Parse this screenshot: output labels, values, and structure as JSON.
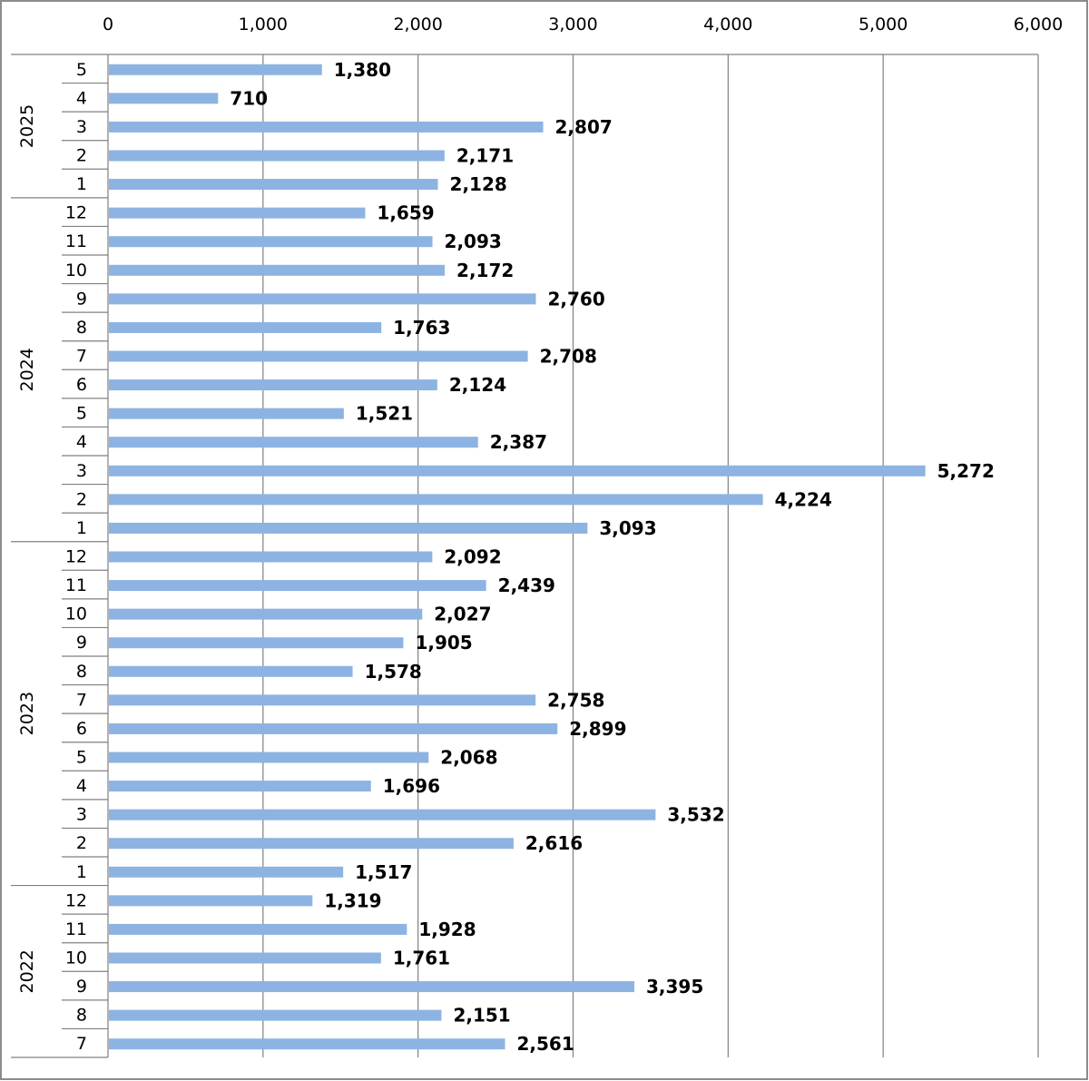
{
  "chart_data": {
    "type": "bar",
    "orientation": "horizontal",
    "xlim": [
      0,
      6000
    ],
    "x_ticks": [
      "0",
      "1,000",
      "2,000",
      "3,000",
      "4,000",
      "5,000",
      "6,000"
    ],
    "x_tick_values": [
      0,
      1000,
      2000,
      3000,
      4000,
      5000,
      6000
    ],
    "x_axis_position": "top",
    "grid": true,
    "bar_color": "#8db3e2",
    "gridline_color": "#808080",
    "groups": [
      {
        "label": "2025",
        "categories": [
          "5",
          "4",
          "3",
          "2",
          "1"
        ]
      },
      {
        "label": "2024",
        "categories": [
          "12",
          "11",
          "10",
          "9",
          "8",
          "7",
          "6",
          "5",
          "4",
          "3",
          "2",
          "1"
        ]
      },
      {
        "label": "2023",
        "categories": [
          "12",
          "11",
          "10",
          "9",
          "8",
          "7",
          "6",
          "5",
          "4",
          "3",
          "2",
          "1"
        ]
      },
      {
        "label": "2022",
        "categories": [
          "12",
          "11",
          "10",
          "9",
          "8",
          "7"
        ]
      }
    ],
    "values": [
      1380,
      710,
      2807,
      2171,
      2128,
      1659,
      2093,
      2172,
      2760,
      1763,
      2708,
      2124,
      1521,
      2387,
      5272,
      4224,
      3093,
      2092,
      2439,
      2027,
      1905,
      1578,
      2758,
      2899,
      2068,
      1696,
      3532,
      2616,
      1517,
      1319,
      1928,
      1761,
      3395,
      2151,
      2561
    ],
    "value_labels": [
      "1,380",
      "710",
      "2,807",
      "2,171",
      "2,128",
      "1,659",
      "2,093",
      "2,172",
      "2,760",
      "1,763",
      "2,708",
      "2,124",
      "1,521",
      "2,387",
      "5,272",
      "4,224",
      "3,093",
      "2,092",
      "2,439",
      "2,027",
      "1,905",
      "1,578",
      "2,758",
      "2,899",
      "2,068",
      "1,696",
      "3,532",
      "2,616",
      "1,517",
      "1,319",
      "1,928",
      "1,761",
      "3,395",
      "2,151",
      "2,561"
    ]
  }
}
